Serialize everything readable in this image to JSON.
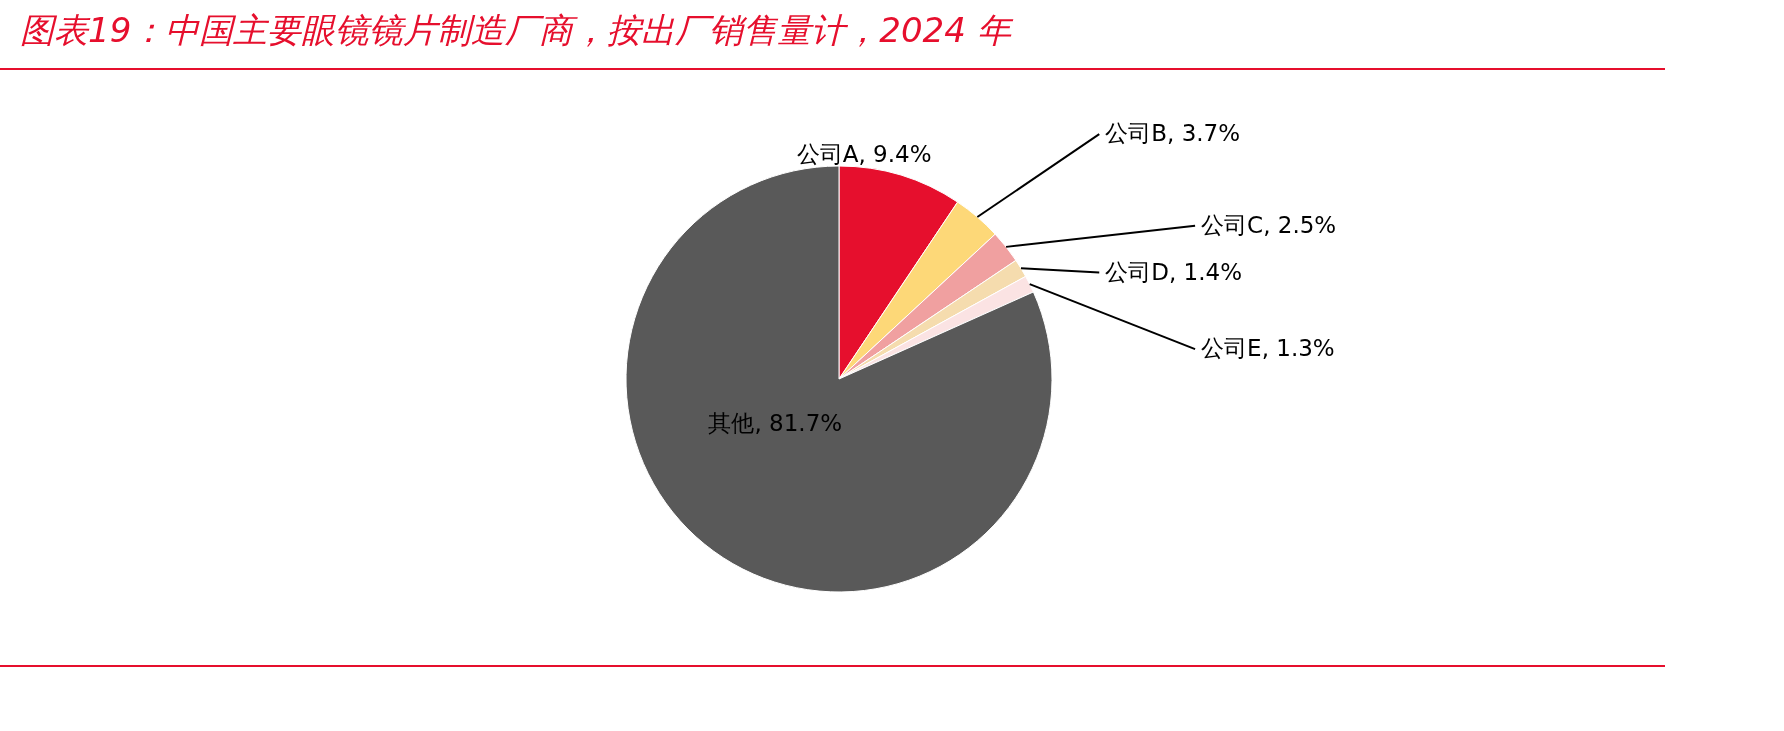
{
  "chart_data": {
    "type": "pie",
    "title": "图表19：中国主要眼镜镜片制造厂商，按出厂销售量计，2024 年",
    "categories": [
      "公司A",
      "公司B",
      "公司C",
      "公司D",
      "公司E",
      "其他"
    ],
    "values": [
      9.4,
      3.7,
      2.5,
      1.4,
      1.3,
      81.7
    ],
    "value_labels": [
      "9.4%",
      "3.7%",
      "2.5%",
      "1.4%",
      "1.3%",
      "81.7%"
    ],
    "colors": [
      "#e60f2d",
      "#fdd878",
      "#f0a0a0",
      "#f5dcae",
      "#fbe3e3",
      "#595959"
    ],
    "legend": false
  }
}
